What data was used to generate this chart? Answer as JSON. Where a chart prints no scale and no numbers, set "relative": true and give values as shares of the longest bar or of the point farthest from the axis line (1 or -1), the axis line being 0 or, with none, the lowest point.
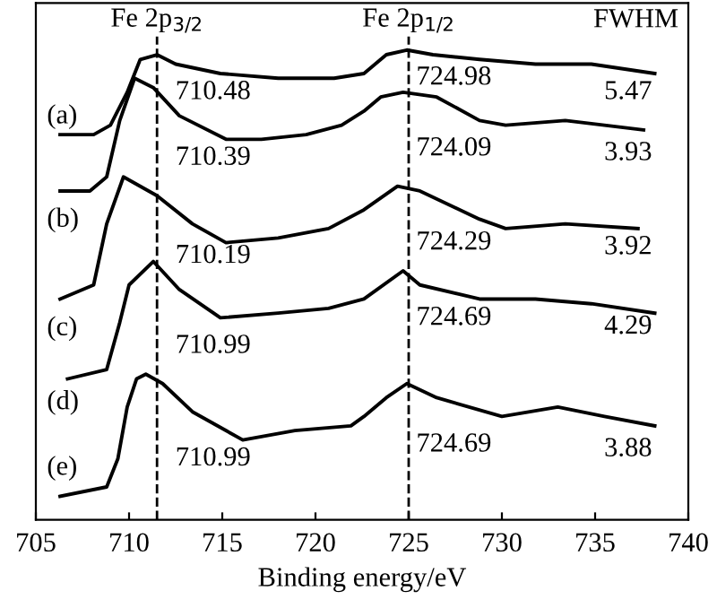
{
  "chart_data": {
    "type": "line",
    "relative": true,
    "xlabel": "Binding energy/eV",
    "xlim": [
      705,
      740
    ],
    "xticks": [
      705,
      710,
      715,
      720,
      725,
      730,
      735,
      740
    ],
    "grid": false,
    "line_style": "solid",
    "series": [
      {
        "color": "#000000",
        "x": [
          706.3,
          708.1,
          709.0,
          709.9,
          710.6,
          711.5,
          712.5,
          714.9,
          718.0,
          721.0,
          722.6,
          723.8,
          724.9,
          726.3,
          728.8,
          731.8,
          734.8,
          738.2
        ],
        "values": [
          0.82,
          0.82,
          0.84,
          0.91,
          0.98,
          0.99,
          0.97,
          0.95,
          0.94,
          0.94,
          0.95,
          0.99,
          1.0,
          0.99,
          0.98,
          0.97,
          0.97,
          0.95
        ]
      },
      {
        "color": "#000000",
        "x": [
          706.3,
          707.9,
          708.8,
          709.5,
          710.3,
          711.3,
          712.7,
          715.2,
          717.1,
          719.5,
          721.4,
          722.6,
          723.5,
          724.7,
          726.5,
          728.8,
          730.2,
          733.4,
          735.5,
          737.6
        ],
        "values": [
          0.7,
          0.7,
          0.73,
          0.85,
          0.94,
          0.92,
          0.86,
          0.81,
          0.81,
          0.82,
          0.84,
          0.87,
          0.9,
          0.91,
          0.9,
          0.85,
          0.84,
          0.85,
          0.84,
          0.83
        ]
      },
      {
        "color": "#000000",
        "x": [
          706.3,
          708.1,
          708.8,
          709.7,
          711.5,
          713.4,
          715.2,
          718.0,
          720.7,
          722.6,
          724.4,
          725.6,
          728.8,
          730.2,
          733.4,
          737.3
        ],
        "values": [
          0.47,
          0.5,
          0.63,
          0.73,
          0.69,
          0.63,
          0.59,
          0.6,
          0.62,
          0.66,
          0.71,
          0.7,
          0.64,
          0.62,
          0.63,
          0.62
        ]
      },
      {
        "color": "#000000",
        "x": [
          706.7,
          708.8,
          709.5,
          710.0,
          711.3,
          712.7,
          714.9,
          718.0,
          720.7,
          722.6,
          724.7,
          725.6,
          728.8,
          731.8,
          734.8,
          738.2
        ],
        "values": [
          0.3,
          0.32,
          0.42,
          0.5,
          0.55,
          0.49,
          0.43,
          0.44,
          0.45,
          0.47,
          0.53,
          0.5,
          0.47,
          0.47,
          0.46,
          0.44
        ]
      },
      {
        "color": "#000000",
        "x": [
          706.3,
          708.8,
          709.4,
          709.9,
          710.4,
          710.9,
          711.8,
          713.4,
          716.1,
          718.9,
          721.9,
          722.6,
          723.8,
          724.9,
          726.5,
          730.0,
          733.0,
          735.5,
          738.2
        ],
        "values": [
          0.05,
          0.07,
          0.13,
          0.24,
          0.3,
          0.31,
          0.29,
          0.23,
          0.17,
          0.19,
          0.2,
          0.22,
          0.26,
          0.29,
          0.26,
          0.22,
          0.24,
          0.22,
          0.2
        ]
      }
    ],
    "ref_lines": [
      {
        "axis": "x",
        "value": 711.5,
        "label": "Fe 2p$_{3/2}$",
        "color": "#000000",
        "line_style": "dashed"
      },
      {
        "axis": "x",
        "value": 725,
        "label": "Fe 2p$_{1/2}$",
        "color": "#000000",
        "line_style": "dashed"
      }
    ],
    "annotations": [
      "FWHM",
      "(a)",
      "(b)",
      "(c)",
      "(d)",
      "(e)",
      "710.48",
      "710.39",
      "710.19",
      "710.99",
      "710.99",
      "724.98",
      "724.09",
      "724.29",
      "724.69",
      "724.69",
      "5.47",
      "3.93",
      "3.92",
      "4.29",
      "3.88"
    ]
  }
}
